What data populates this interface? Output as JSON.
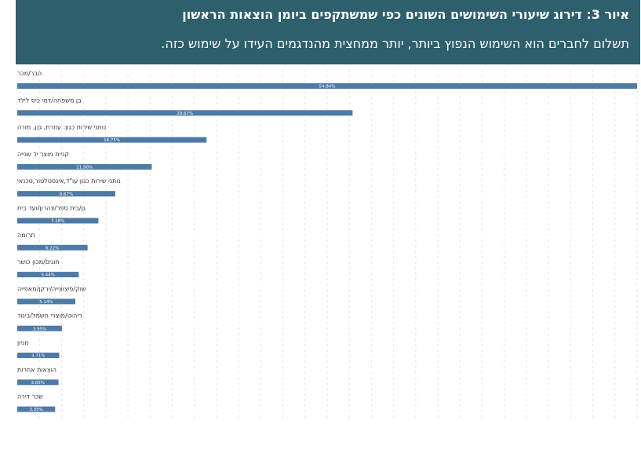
{
  "header": {
    "title": "איור 3: דירוג שיעורי השימושים השונים כפי שמשתקפים ביומן הוצאות הראשון",
    "subtitle": "תשלום לחברים הוא השימוש הנפוץ ביותר, יותר ממחצית מהנדגמים העידו על שימוש כזה."
  },
  "colors": {
    "header_bg": "#2d5f6c",
    "bar": "#4d7aa6",
    "grid": "#e6e6e6"
  },
  "chart_data": {
    "type": "bar",
    "orientation": "horizontal",
    "title": "איור 3: דירוג שיעורי השימושים השונים כפי שמשתקפים ביומן הוצאות הראשון",
    "subtitle": "תשלום לחברים הוא השימוש הנפוץ ביותר, יותר ממחצית מהנדגמים העידו על שימוש כזה.",
    "categories": [
      "חבר/מכר",
      "בן משפחה/דמי כיס לילד",
      "נותני שירות כגון: עוזרת, גנן, מורה",
      "קניית מוצר יד שנייה",
      "נותני שירות כגון עו\"ד,אינסטלטור,טכנאי",
      "גן/בית ספר/צהרון/ועד בית",
      "תרומה",
      "חוגים/מכון כושר",
      "שוק/פיצוצייה/ירקן/מאפייה",
      "ריהוט/מוצרי חשמל/ביגוד",
      "חניון",
      "הוצאות אחרות",
      "שכר דירה"
    ],
    "values": [
      54.84,
      29.67,
      16.75,
      11.9,
      8.67,
      7.18,
      6.22,
      5.44,
      5.14,
      3.95,
      3.71,
      3.65,
      3.35
    ],
    "value_labels": [
      "54.84%",
      "29.67%",
      "16.75%",
      "11.90%",
      "8.67%",
      "7.18%",
      "6.22%",
      "5.44%",
      "5.14%",
      "3.95%",
      "3.71%",
      "3.65%",
      "3.35%"
    ],
    "xlim": [
      0,
      54.84
    ],
    "grid": true,
    "legend": "none"
  }
}
